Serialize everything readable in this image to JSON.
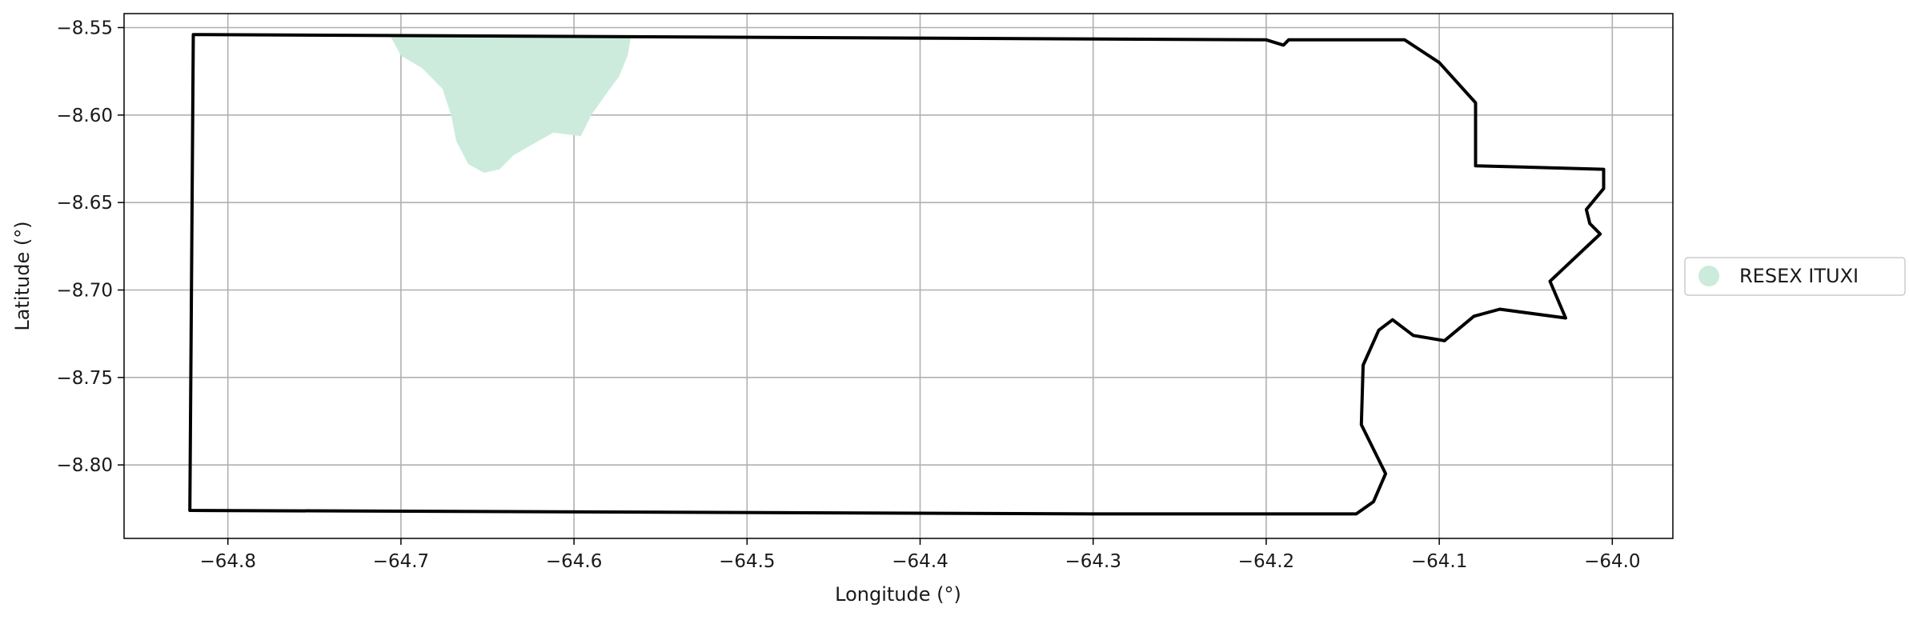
{
  "map": {
    "xlabel": "Longitude (°)",
    "ylabel": "Latitude (°)",
    "xlim": [
      -64.86,
      -63.965
    ],
    "ylim": [
      -8.842,
      -8.542
    ],
    "grid": true,
    "x_ticks": [
      {
        "value": -64.8,
        "label": "−64.8"
      },
      {
        "value": -64.7,
        "label": "−64.7"
      },
      {
        "value": -64.6,
        "label": "−64.6"
      },
      {
        "value": -64.5,
        "label": "−64.5"
      },
      {
        "value": -64.4,
        "label": "−64.4"
      },
      {
        "value": -64.3,
        "label": "−64.3"
      },
      {
        "value": -64.2,
        "label": "−64.2"
      },
      {
        "value": -64.1,
        "label": "−64.1"
      },
      {
        "value": -64.0,
        "label": "−64.0"
      }
    ],
    "y_ticks": [
      {
        "value": -8.55,
        "label": "−8.55"
      },
      {
        "value": -8.6,
        "label": "−8.60"
      },
      {
        "value": -8.65,
        "label": "−8.65"
      },
      {
        "value": -8.7,
        "label": "−8.70"
      },
      {
        "value": -8.75,
        "label": "−8.75"
      },
      {
        "value": -8.8,
        "label": "−8.80"
      }
    ],
    "legend": {
      "placement": "outside right",
      "entries": [
        {
          "label": "RESEX ITUXI",
          "color": "#ccebdc"
        }
      ]
    },
    "colors": {
      "boundary": "#000000",
      "area_fill": "#ccebdc",
      "grid": "#b0b0b0"
    },
    "boundary": [
      [
        -64.82,
        -8.554
      ],
      [
        -64.2,
        -8.557
      ],
      [
        -64.19,
        -8.56
      ],
      [
        -64.187,
        -8.557
      ],
      [
        -64.12,
        -8.557
      ],
      [
        -64.1,
        -8.57
      ],
      [
        -64.079,
        -8.593
      ],
      [
        -64.079,
        -8.629
      ],
      [
        -64.005,
        -8.631
      ],
      [
        -64.005,
        -8.642
      ],
      [
        -64.015,
        -8.654
      ],
      [
        -64.013,
        -8.662
      ],
      [
        -64.007,
        -8.668
      ],
      [
        -64.036,
        -8.695
      ],
      [
        -64.027,
        -8.716
      ],
      [
        -64.065,
        -8.711
      ],
      [
        -64.08,
        -8.715
      ],
      [
        -64.097,
        -8.729
      ],
      [
        -64.115,
        -8.726
      ],
      [
        -64.127,
        -8.717
      ],
      [
        -64.135,
        -8.723
      ],
      [
        -64.144,
        -8.743
      ],
      [
        -64.145,
        -8.777
      ],
      [
        -64.131,
        -8.805
      ],
      [
        -64.138,
        -8.821
      ],
      [
        -64.148,
        -8.828
      ],
      [
        -64.3,
        -8.828
      ],
      [
        -64.822,
        -8.826
      ]
    ],
    "resex_area": [
      [
        -64.706,
        -8.555
      ],
      [
        -64.567,
        -8.555
      ],
      [
        -64.569,
        -8.566
      ],
      [
        -64.574,
        -8.578
      ],
      [
        -64.58,
        -8.586
      ],
      [
        -64.59,
        -8.6
      ],
      [
        -64.596,
        -8.612
      ],
      [
        -64.612,
        -8.61
      ],
      [
        -64.628,
        -8.619
      ],
      [
        -64.635,
        -8.623
      ],
      [
        -64.643,
        -8.631
      ],
      [
        -64.652,
        -8.633
      ],
      [
        -64.661,
        -8.628
      ],
      [
        -64.668,
        -8.615
      ],
      [
        -64.671,
        -8.6
      ],
      [
        -64.676,
        -8.585
      ],
      [
        -64.688,
        -8.573
      ],
      [
        -64.7,
        -8.566
      ]
    ]
  }
}
